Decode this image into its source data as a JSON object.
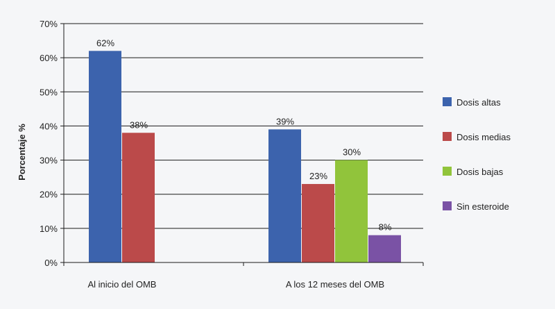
{
  "chart_data": {
    "type": "bar",
    "ylabel": "Porcentaje %",
    "xlabel": "",
    "ylim": [
      0,
      70
    ],
    "ytick_step": 10,
    "ytick_suffix": "%",
    "grid": true,
    "legend_position": "right",
    "categories": [
      "Al inicio del OMB",
      "A los 12 meses del OMB"
    ],
    "series": [
      {
        "name": "Dosis altas",
        "color": "#3c63ad",
        "values": [
          62,
          39
        ],
        "labels": [
          "62%",
          "39%"
        ]
      },
      {
        "name": "Dosis medias",
        "color": "#bb4a4a",
        "values": [
          38,
          23
        ],
        "labels": [
          "38%",
          "23%"
        ]
      },
      {
        "name": "Dosis bajas",
        "color": "#91c43b",
        "values": [
          null,
          30
        ],
        "labels": [
          null,
          "30%"
        ]
      },
      {
        "name": "Sin esteroide",
        "color": "#7a52a5",
        "values": [
          null,
          8
        ],
        "labels": [
          null,
          "8%"
        ]
      }
    ]
  }
}
